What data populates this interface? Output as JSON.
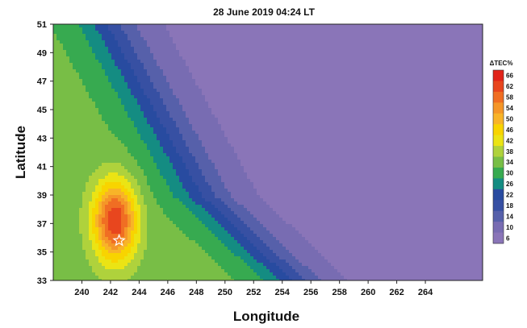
{
  "chart_data": {
    "type": "heatmap",
    "title": "28 June 2019 04:24 LT",
    "xlabel": "Longitude",
    "ylabel": "Latitude",
    "xlim": [
      238,
      268
    ],
    "ylim": [
      33,
      51
    ],
    "x_ticks": [
      "240",
      "242",
      "244",
      "246",
      "248",
      "250",
      "252",
      "254",
      "256",
      "258",
      "260",
      "262",
      "264"
    ],
    "y_ticks": [
      "33",
      "35",
      "37",
      "39",
      "41",
      "43",
      "45",
      "47",
      "49",
      "51"
    ],
    "colorbar": {
      "title": "ΔTEC%",
      "ticks": [
        "66",
        "62",
        "58",
        "54",
        "50",
        "46",
        "42",
        "38",
        "34",
        "30",
        "26",
        "22",
        "18",
        "14",
        "10",
        "6"
      ],
      "min": 6,
      "max": 66
    },
    "colors": {
      "low": "#8a75b8",
      "blue": "#2f4fa0",
      "green": "#2fa55a",
      "yellow": "#f4e400",
      "orange": "#f5a623",
      "red": "#e8251d"
    },
    "grid": false,
    "max_value": 66,
    "peak": {
      "lon": 242.3,
      "lat": 37.2,
      "value": 66
    },
    "star_marker": {
      "lon": 242.6,
      "lat": 35.8
    },
    "star_icon": "star-outline-icon"
  }
}
